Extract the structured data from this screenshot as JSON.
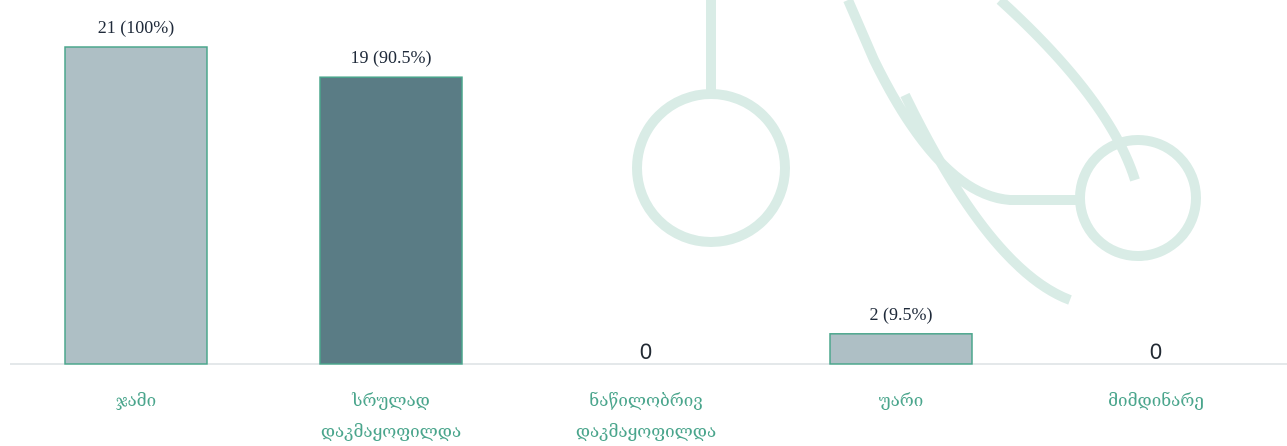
{
  "chart_data": {
    "type": "bar",
    "categories": [
      [
        "ჯამი"
      ],
      [
        "სრულად",
        "დაკმაყოფილდა"
      ],
      [
        "ნაწილობრივ",
        "დაკმაყოფილდა"
      ],
      [
        "უარი"
      ],
      [
        "მიმდინარე"
      ]
    ],
    "values": [
      21,
      19,
      0,
      2,
      0
    ],
    "value_labels": [
      "21 (100%)",
      "19 (90.5%)",
      "0",
      "2 (9.5%)",
      "0"
    ],
    "ylim": [
      0,
      21
    ],
    "bar_colors": [
      "#aebfc5",
      "#5a7c85",
      "#aebfc5",
      "#aebfc5",
      "#aebfc5"
    ],
    "bar_border_color": "#4aa58c",
    "label_color": "#4aa58c",
    "watermark_color": "#d9ece6",
    "grid": false,
    "legend": "none"
  }
}
